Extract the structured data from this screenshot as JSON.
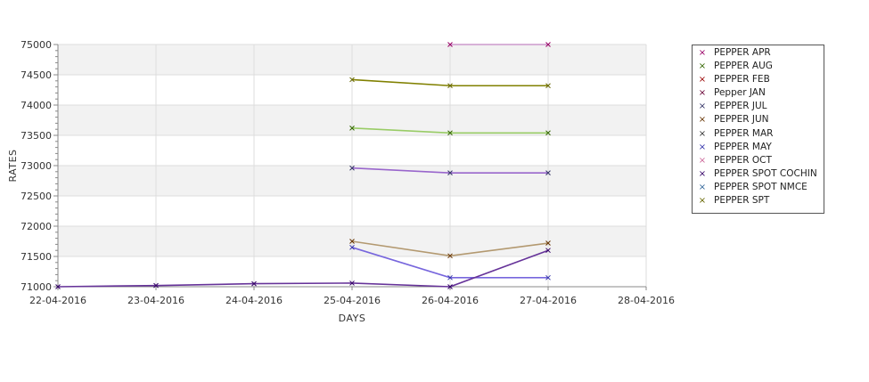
{
  "chart_data": {
    "type": "line",
    "xlabel": "DAYS",
    "ylabel": "RATES",
    "x_ticks": [
      "22-04-2016",
      "23-04-2016",
      "24-04-2016",
      "25-04-2016",
      "26-04-2016",
      "27-04-2016",
      "28-04-2016"
    ],
    "y_ticks": [
      "71000",
      "71500",
      "72000",
      "72500",
      "73000",
      "73500",
      "74000",
      "74500",
      "75000"
    ],
    "ylim": [
      71000,
      75000
    ],
    "grid": true,
    "legend_position": "right",
    "series": [
      {
        "name": "PEPPER APR",
        "color": "#cc99cc",
        "marker": "#990066",
        "points": [
          [
            "26-04-2016",
            75000
          ],
          [
            "27-04-2016",
            75000
          ]
        ]
      },
      {
        "name": "PEPPER AUG",
        "color": "#99cc66",
        "marker": "#336600",
        "points": [
          [
            "25-04-2016",
            73620
          ],
          [
            "26-04-2016",
            73540
          ],
          [
            "27-04-2016",
            73540
          ]
        ]
      },
      {
        "name": "PEPPER FEB",
        "color": "#990000",
        "marker": "#990000",
        "points": []
      },
      {
        "name": "Pepper JAN",
        "color": "#660033",
        "marker": "#660033",
        "points": []
      },
      {
        "name": "PEPPER JUL",
        "color": "#9966cc",
        "marker": "#333366",
        "points": [
          [
            "25-04-2016",
            72960
          ],
          [
            "26-04-2016",
            72880
          ],
          [
            "27-04-2016",
            72880
          ]
        ]
      },
      {
        "name": "PEPPER JUN",
        "color": "#b39970",
        "marker": "#663300",
        "points": [
          [
            "25-04-2016",
            71750
          ],
          [
            "26-04-2016",
            71510
          ],
          [
            "27-04-2016",
            71720
          ]
        ]
      },
      {
        "name": "PEPPER MAR",
        "color": "#336633",
        "marker": "#333333",
        "points": []
      },
      {
        "name": "PEPPER MAY",
        "color": "#7766dd",
        "marker": "#3333aa",
        "points": [
          [
            "25-04-2016",
            71650
          ],
          [
            "26-04-2016",
            71150
          ],
          [
            "27-04-2016",
            71150
          ]
        ]
      },
      {
        "name": "PEPPER OCT",
        "color": "#cc6699",
        "marker": "#cc6699",
        "points": []
      },
      {
        "name": "PEPPER SPOT COCHIN",
        "color": "#663399",
        "marker": "#330066",
        "points": [
          [
            "22-04-2016",
            71000
          ],
          [
            "23-04-2016",
            71020
          ],
          [
            "24-04-2016",
            71050
          ],
          [
            "25-04-2016",
            71060
          ],
          [
            "26-04-2016",
            71000
          ],
          [
            "27-04-2016",
            71600
          ]
        ]
      },
      {
        "name": "PEPPER SPOT NMCE",
        "color": "#336699",
        "marker": "#336699",
        "points": []
      },
      {
        "name": "PEPPER SPT",
        "color": "#808000",
        "marker": "#666600",
        "points": [
          [
            "25-04-2016",
            74420
          ],
          [
            "26-04-2016",
            74320
          ],
          [
            "27-04-2016",
            74320
          ]
        ]
      }
    ]
  }
}
